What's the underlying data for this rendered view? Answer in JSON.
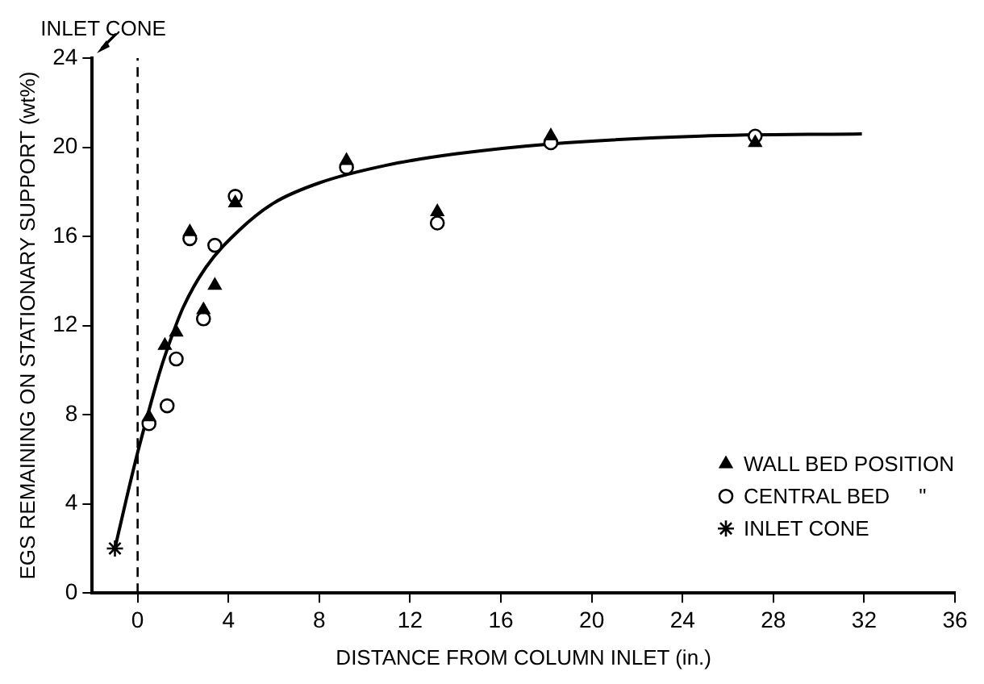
{
  "chart_data": {
    "type": "scatter",
    "xlabel": "DISTANCE FROM COLUMN INLET (in.)",
    "ylabel": "EGS REMAINING ON STATIONARY SUPPORT (wt%)",
    "xlim": [
      -2,
      36
    ],
    "xticks": [
      0,
      4,
      8,
      12,
      16,
      20,
      24,
      28,
      32,
      36
    ],
    "ylim": [
      0,
      24
    ],
    "yticks": [
      0,
      4,
      8,
      12,
      16,
      20,
      24
    ],
    "grid": false,
    "legend": "bottom right",
    "ref_lines": [
      {
        "axis": "x",
        "value": 0,
        "label": null,
        "color": "#000000",
        "line_style": "dashed"
      }
    ],
    "annotations": [
      "INLET CONE"
    ],
    "series": [
      {
        "name": "WALL BED POSITION",
        "color": "#000000",
        "marker": "triangle",
        "x": [
          0.5,
          1.2,
          1.7,
          2.3,
          2.9,
          3.4,
          4.3,
          9.2,
          13.2,
          18.2,
          27.2
        ],
        "values": [
          7.9,
          11.1,
          11.7,
          16.2,
          12.7,
          13.8,
          17.5,
          19.4,
          17.1,
          20.5,
          20.2
        ]
      },
      {
        "name": "CENTRAL BED     \"",
        "color": "#000000",
        "marker": "circle",
        "x": [
          0.5,
          1.3,
          1.7,
          2.3,
          2.9,
          3.4,
          4.3,
          9.2,
          13.2,
          18.2,
          27.2
        ],
        "values": [
          7.6,
          8.4,
          10.5,
          15.9,
          12.3,
          15.6,
          17.8,
          19.1,
          16.6,
          20.2,
          20.5
        ]
      },
      {
        "name": "INLET CONE",
        "color": "#000000",
        "marker": "cross",
        "x": [
          -1
        ],
        "values": [
          2
        ]
      },
      {
        "type": "line",
        "color": "#000000",
        "marker": "none",
        "line_style": "solid",
        "x": [
          -1,
          -0.5,
          0,
          0.5,
          1,
          1.5,
          2,
          3,
          4.5,
          6,
          8,
          11,
          14,
          18.2,
          24.8,
          31.9
        ],
        "values": [
          2,
          4.2,
          6.3,
          8.2,
          10,
          11.5,
          12.8,
          14.6,
          16.3,
          17.5,
          18.4,
          19.2,
          19.7,
          20.15,
          20.5,
          20.6
        ]
      }
    ]
  }
}
